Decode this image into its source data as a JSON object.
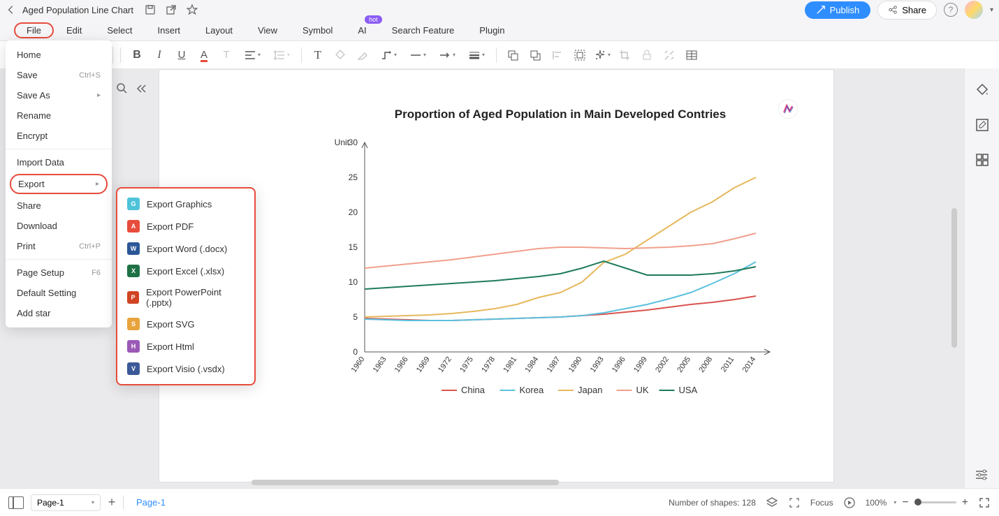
{
  "doc": {
    "title": "Aged Population Line Chart"
  },
  "top_actions": {
    "publish": "Publish",
    "share": "Share"
  },
  "menu": {
    "items": [
      "File",
      "Edit",
      "Select",
      "Insert",
      "Layout",
      "View",
      "Symbol",
      "AI",
      "Search Feature",
      "Plugin"
    ],
    "hot_badge": "hot"
  },
  "toolbar": {
    "font_size": "10"
  },
  "file_menu": {
    "items": [
      {
        "label": "Home",
        "shortcut": "",
        "arrow": false
      },
      {
        "label": "Save",
        "shortcut": "Ctrl+S",
        "arrow": false
      },
      {
        "label": "Save As",
        "shortcut": "",
        "arrow": true
      },
      {
        "label": "Rename",
        "shortcut": "",
        "arrow": false
      },
      {
        "label": "Encrypt",
        "shortcut": "",
        "arrow": false
      },
      {
        "label": "Import Data",
        "shortcut": "",
        "arrow": false,
        "divider_before": true
      },
      {
        "label": "Export",
        "shortcut": "",
        "arrow": true,
        "highlighted": true
      },
      {
        "label": "Share",
        "shortcut": "",
        "arrow": false
      },
      {
        "label": "Download",
        "shortcut": "",
        "arrow": false
      },
      {
        "label": "Print",
        "shortcut": "Ctrl+P",
        "arrow": false
      },
      {
        "label": "Page Setup",
        "shortcut": "F6",
        "arrow": false,
        "divider_before": true
      },
      {
        "label": "Default Setting",
        "shortcut": "",
        "arrow": false
      },
      {
        "label": "Add star",
        "shortcut": "",
        "arrow": false
      }
    ]
  },
  "export_menu": {
    "items": [
      {
        "label": "Export Graphics",
        "icon_color": "#4fc3d9",
        "icon_letter": "G"
      },
      {
        "label": "Export PDF",
        "icon_color": "#e74c3c",
        "icon_letter": "A"
      },
      {
        "label": "Export Word (.docx)",
        "icon_color": "#2b5797",
        "icon_letter": "W"
      },
      {
        "label": "Export Excel (.xlsx)",
        "icon_color": "#1e7145",
        "icon_letter": "X"
      },
      {
        "label": "Export PowerPoint (.pptx)",
        "icon_color": "#d04423",
        "icon_letter": "P"
      },
      {
        "label": "Export SVG",
        "icon_color": "#e8a33d",
        "icon_letter": "S"
      },
      {
        "label": "Export Html",
        "icon_color": "#9b59b6",
        "icon_letter": "H"
      },
      {
        "label": "Export Visio (.vsdx)",
        "icon_color": "#3b5998",
        "icon_letter": "V"
      }
    ]
  },
  "chart": {
    "title": "Proportion of Aged Population in Main Developed Contries",
    "type": "line",
    "y_label": "Unit",
    "y_ticks": [
      0,
      5,
      10,
      15,
      20,
      25,
      30
    ],
    "ylim": [
      0,
      30
    ],
    "x_categories": [
      "1960",
      "1963",
      "1966",
      "1969",
      "1972",
      "1975",
      "1978",
      "1981",
      "1984",
      "1987",
      "1990",
      "1993",
      "1996",
      "1999",
      "2002",
      "2005",
      "2008",
      "2011",
      "2014"
    ],
    "series": [
      {
        "name": "China",
        "color": "#d9534f",
        "values": [
          4.8,
          4.7,
          4.6,
          4.5,
          4.5,
          4.6,
          4.7,
          4.8,
          4.9,
          5.0,
          5.2,
          5.4,
          5.7,
          6.0,
          6.4,
          6.8,
          7.1,
          7.5,
          8.0
        ]
      },
      {
        "name": "Korea",
        "color": "#5bc0de",
        "values": [
          4.7,
          4.6,
          4.5,
          4.5,
          4.5,
          4.6,
          4.7,
          4.8,
          4.9,
          5.0,
          5.2,
          5.6,
          6.2,
          6.8,
          7.6,
          8.5,
          9.8,
          11.2,
          12.9
        ]
      },
      {
        "name": "Japan",
        "color": "#e6b85c",
        "values": [
          5.0,
          5.1,
          5.2,
          5.3,
          5.5,
          5.8,
          6.2,
          6.8,
          7.8,
          8.5,
          10.0,
          12.8,
          14.0,
          16.0,
          18.0,
          20.0,
          21.5,
          23.5,
          25.0
        ]
      },
      {
        "name": "UK",
        "color": "#f0a08c",
        "values": [
          12.0,
          12.3,
          12.6,
          12.9,
          13.2,
          13.6,
          14.0,
          14.4,
          14.8,
          15.0,
          15.0,
          14.9,
          14.8,
          14.9,
          15.0,
          15.2,
          15.5,
          16.2,
          17.0
        ]
      },
      {
        "name": "USA",
        "color": "#1e7b5a",
        "values": [
          9.0,
          9.2,
          9.4,
          9.6,
          9.8,
          10.0,
          10.2,
          10.5,
          10.8,
          11.2,
          12.0,
          13.0,
          12.0,
          11.0,
          11.0,
          11.0,
          11.2,
          11.6,
          12.2
        ]
      }
    ],
    "axis_color": "#555555",
    "label_fontsize": 12,
    "background_color": "#ffffff",
    "line_width": 2
  },
  "bottom": {
    "page_select": "Page-1",
    "page_tab": "Page-1",
    "shapes_text": "Number of shapes: 128",
    "focus": "Focus",
    "zoom": "100%"
  }
}
